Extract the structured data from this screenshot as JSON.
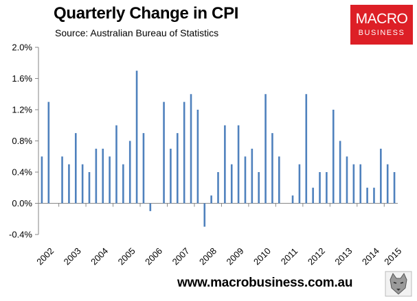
{
  "chart_data": {
    "type": "bar",
    "title": "Quarterly Change in CPI",
    "subtitle": "Source: Australian Bureau of Statistics",
    "xlabel": "",
    "ylabel": "",
    "ylim": [
      -0.4,
      2.0
    ],
    "yticks": [
      "2.0%",
      "1.6%",
      "1.2%",
      "0.8%",
      "0.4%",
      "0.0%",
      "-0.4%"
    ],
    "ytick_values": [
      2.0,
      1.6,
      1.2,
      0.8,
      0.4,
      0.0,
      -0.4
    ],
    "year_labels": [
      "2002",
      "2003",
      "2004",
      "2005",
      "2006",
      "2007",
      "2008",
      "2009",
      "2010",
      "2011",
      "2012",
      "2013",
      "2014",
      "2015"
    ],
    "grid": false,
    "bar_color": "#4f81bd",
    "values": [
      0.6,
      1.3,
      null,
      0.6,
      0.5,
      0.9,
      0.5,
      0.4,
      0.7,
      0.7,
      0.6,
      1.0,
      0.5,
      0.8,
      1.7,
      0.9,
      -0.1,
      null,
      1.3,
      0.7,
      0.9,
      1.3,
      1.4,
      1.2,
      -0.3,
      0.1,
      0.4,
      1.0,
      0.5,
      1.0,
      0.6,
      0.7,
      0.4,
      1.4,
      0.9,
      0.6,
      null,
      0.1,
      0.5,
      1.4,
      0.2,
      0.4,
      0.4,
      1.2,
      0.8,
      0.6,
      0.5,
      0.5,
      0.2,
      0.2,
      0.7,
      0.5,
      0.4
    ]
  },
  "logo": {
    "line1": "MACRO",
    "line2": "BUSINESS",
    "color": "#dd1f26"
  },
  "footer": {
    "url": "www.macrobusiness.com.au"
  },
  "mascot": {
    "icon": "wolf-icon"
  }
}
